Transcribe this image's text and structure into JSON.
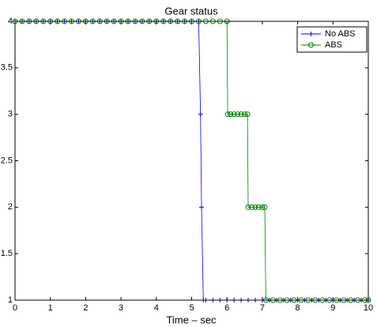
{
  "chart_data": {
    "type": "line",
    "title": "Gear status",
    "xlabel": "Time – sec",
    "xlim": [
      0,
      10
    ],
    "ylim": [
      1,
      4
    ],
    "xticks": [
      0,
      1,
      2,
      3,
      4,
      5,
      6,
      7,
      8,
      9,
      10
    ],
    "yticks": [
      1,
      1.5,
      2,
      2.5,
      3,
      3.5,
      4
    ],
    "legend": "upper right",
    "series": [
      {
        "name": "No ABS",
        "color": "#0000ff",
        "marker": "+",
        "x": [
          0,
          0.2,
          0.4,
          0.6,
          0.8,
          1,
          1.2,
          1.4,
          1.6,
          1.8,
          2,
          2.2,
          2.4,
          2.6,
          2.8,
          3,
          3.2,
          3.4,
          3.6,
          3.8,
          4,
          4.2,
          4.4,
          4.6,
          4.8,
          5,
          5.2,
          5.25,
          5.28,
          5.33,
          5.4,
          5.6,
          5.8,
          6,
          6.2,
          6.4,
          6.6,
          6.8,
          7,
          7.2,
          7.4,
          7.6,
          7.8,
          8,
          8.2,
          8.4,
          8.6,
          8.8,
          9,
          9.2,
          9.4,
          9.6,
          9.8,
          10
        ],
        "values": [
          4,
          4,
          4,
          4,
          4,
          4,
          4,
          4,
          4,
          4,
          4,
          4,
          4,
          4,
          4,
          4,
          4,
          4,
          4,
          4,
          4,
          4,
          4,
          4,
          4,
          4,
          4,
          3,
          2,
          1,
          1,
          1,
          1,
          1,
          1,
          1,
          1,
          1,
          1,
          1,
          1,
          1,
          1,
          1,
          1,
          1,
          1,
          1,
          1,
          1,
          1,
          1,
          1,
          1
        ]
      },
      {
        "name": "ABS",
        "color": "#008000",
        "marker": "o",
        "x": [
          0,
          0.2,
          0.4,
          0.6,
          0.8,
          1,
          1.2,
          1.4,
          1.6,
          1.8,
          2,
          2.2,
          2.4,
          2.6,
          2.8,
          3,
          3.2,
          3.4,
          3.6,
          3.8,
          4,
          4.2,
          4.4,
          4.6,
          4.8,
          5,
          5.2,
          5.4,
          5.6,
          5.8,
          6,
          6.02,
          6.1,
          6.2,
          6.3,
          6.4,
          6.5,
          6.58,
          6.6,
          6.7,
          6.8,
          6.9,
          7,
          7.07,
          7.1,
          7.3,
          7.5,
          7.7,
          7.9,
          8.1,
          8.3,
          8.5,
          8.7,
          8.9,
          9.1,
          9.3,
          9.5,
          9.7,
          9.9,
          10
        ],
        "values": [
          4,
          4,
          4,
          4,
          4,
          4,
          4,
          4,
          4,
          4,
          4,
          4,
          4,
          4,
          4,
          4,
          4,
          4,
          4,
          4,
          4,
          4,
          4,
          4,
          4,
          4,
          4,
          4,
          4,
          4,
          4,
          3,
          3,
          3,
          3,
          3,
          3,
          3,
          2,
          2,
          2,
          2,
          2,
          2,
          1,
          1,
          1,
          1,
          1,
          1,
          1,
          1,
          1,
          1,
          1,
          1,
          1,
          1,
          1,
          1
        ]
      }
    ]
  }
}
